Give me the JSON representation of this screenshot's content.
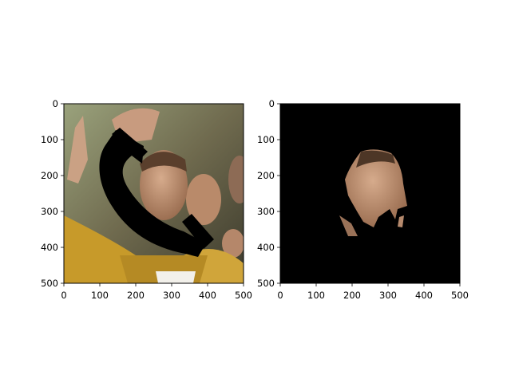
{
  "chart_data": [
    {
      "type": "image",
      "panel": "left",
      "image_description": "Photo of a man in a yellow jacket in a crowd; a large black telephone-handset shaped occlusion covers the lower left of his face diagonally.",
      "xlim": [
        0,
        500
      ],
      "ylim": [
        500,
        0
      ],
      "xticks": [
        0,
        100,
        200,
        300,
        400,
        500
      ],
      "yticks": [
        0,
        100,
        200,
        300,
        400,
        500
      ],
      "xtick_labels": [
        "0",
        "100",
        "200",
        "300",
        "400",
        "500"
      ],
      "ytick_labels": [
        "0",
        "100",
        "200",
        "300",
        "400",
        "500"
      ],
      "title": "",
      "xlabel": "",
      "ylabel": ""
    },
    {
      "type": "image",
      "panel": "right",
      "image_description": "Segmentation mask result: black background with only the visible (non-occluded) skin of the face shown.",
      "xlim": [
        0,
        500
      ],
      "ylim": [
        500,
        0
      ],
      "xticks": [
        0,
        100,
        200,
        300,
        400,
        500
      ],
      "yticks": [
        0,
        100,
        200,
        300,
        400,
        500
      ],
      "xtick_labels": [
        "0",
        "100",
        "200",
        "300",
        "400",
        "500"
      ],
      "ytick_labels": [
        "0",
        "100",
        "200",
        "300",
        "400",
        "500"
      ],
      "title": "",
      "xlabel": "",
      "ylabel": ""
    }
  ],
  "colors": {
    "background": "#ffffff",
    "jacket": "#c79a2a",
    "skin": "#b88c6e",
    "occluder": "#000000",
    "mask_background": "#000000"
  }
}
